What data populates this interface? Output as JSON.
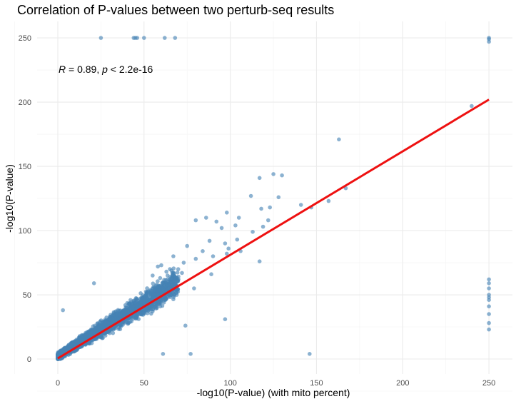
{
  "chart_data": {
    "type": "scatter",
    "title": "Correlation of P-values between two perturb-seq results",
    "xlabel": "-log10(P-value) (with mito percent)",
    "ylabel": "-log10(P-value)",
    "xlim": [
      -12,
      262
    ],
    "ylim": [
      -5,
      258
    ],
    "x_ticks": [
      0,
      50,
      100,
      150,
      200,
      250
    ],
    "y_ticks": [
      0,
      50,
      100,
      150,
      200,
      250
    ],
    "grid": true,
    "annotation": {
      "r_symbol": "R",
      "r_text": " = 0.89, ",
      "p_symbol": "p",
      "p_text": " < 2.2e-16"
    },
    "point_color": "#4682B4",
    "line_color": "#EE1111",
    "regression_line": {
      "x": [
        0,
        250
      ],
      "y": [
        0.5,
        202
      ]
    },
    "outlier_points": [
      [
        25,
        250
      ],
      [
        44,
        250
      ],
      [
        45,
        250
      ],
      [
        46,
        250
      ],
      [
        50,
        250
      ],
      [
        62,
        250
      ],
      [
        68,
        250
      ],
      [
        250,
        250
      ],
      [
        250,
        249
      ],
      [
        250,
        247
      ],
      [
        240,
        197
      ],
      [
        163,
        171
      ],
      [
        125,
        144
      ],
      [
        130,
        143
      ],
      [
        117,
        141
      ],
      [
        167,
        133
      ],
      [
        128,
        126
      ],
      [
        112,
        127
      ],
      [
        157,
        123
      ],
      [
        141,
        120
      ],
      [
        147,
        118
      ],
      [
        118,
        117
      ],
      [
        123,
        118
      ],
      [
        98,
        114
      ],
      [
        105,
        110
      ],
      [
        122,
        108
      ],
      [
        103,
        104
      ],
      [
        119,
        103
      ],
      [
        113,
        99
      ],
      [
        80,
        108
      ],
      [
        86,
        110
      ],
      [
        95,
        102
      ],
      [
        92,
        107
      ],
      [
        106,
        84
      ],
      [
        117,
        76
      ],
      [
        99,
        86
      ],
      [
        98,
        82
      ],
      [
        88,
        92
      ],
      [
        97,
        90
      ],
      [
        104,
        93
      ],
      [
        21,
        59
      ],
      [
        97,
        31
      ],
      [
        74,
        26
      ],
      [
        61,
        4
      ],
      [
        77,
        4
      ],
      [
        146,
        4
      ],
      [
        250,
        62
      ],
      [
        250,
        59
      ],
      [
        250,
        55
      ],
      [
        250,
        50
      ],
      [
        250,
        48
      ],
      [
        250,
        46
      ],
      [
        250,
        41
      ],
      [
        250,
        35
      ],
      [
        250,
        28
      ],
      [
        250,
        23
      ],
      [
        3,
        38
      ],
      [
        70,
        62
      ],
      [
        72,
        67
      ],
      [
        65,
        70
      ],
      [
        60,
        73
      ],
      [
        73,
        75
      ],
      [
        67,
        80
      ],
      [
        80,
        78
      ],
      [
        75,
        88
      ],
      [
        84,
        84
      ],
      [
        89,
        66
      ],
      [
        90,
        80
      ],
      [
        79,
        55
      ],
      [
        63,
        68
      ],
      [
        55,
        65
      ],
      [
        58,
        72
      ]
    ],
    "bulk_points_note": "",
    "bulk_band": {
      "x_range": [
        0,
        70
      ],
      "slope": 0.83,
      "intercept": 2
    }
  }
}
